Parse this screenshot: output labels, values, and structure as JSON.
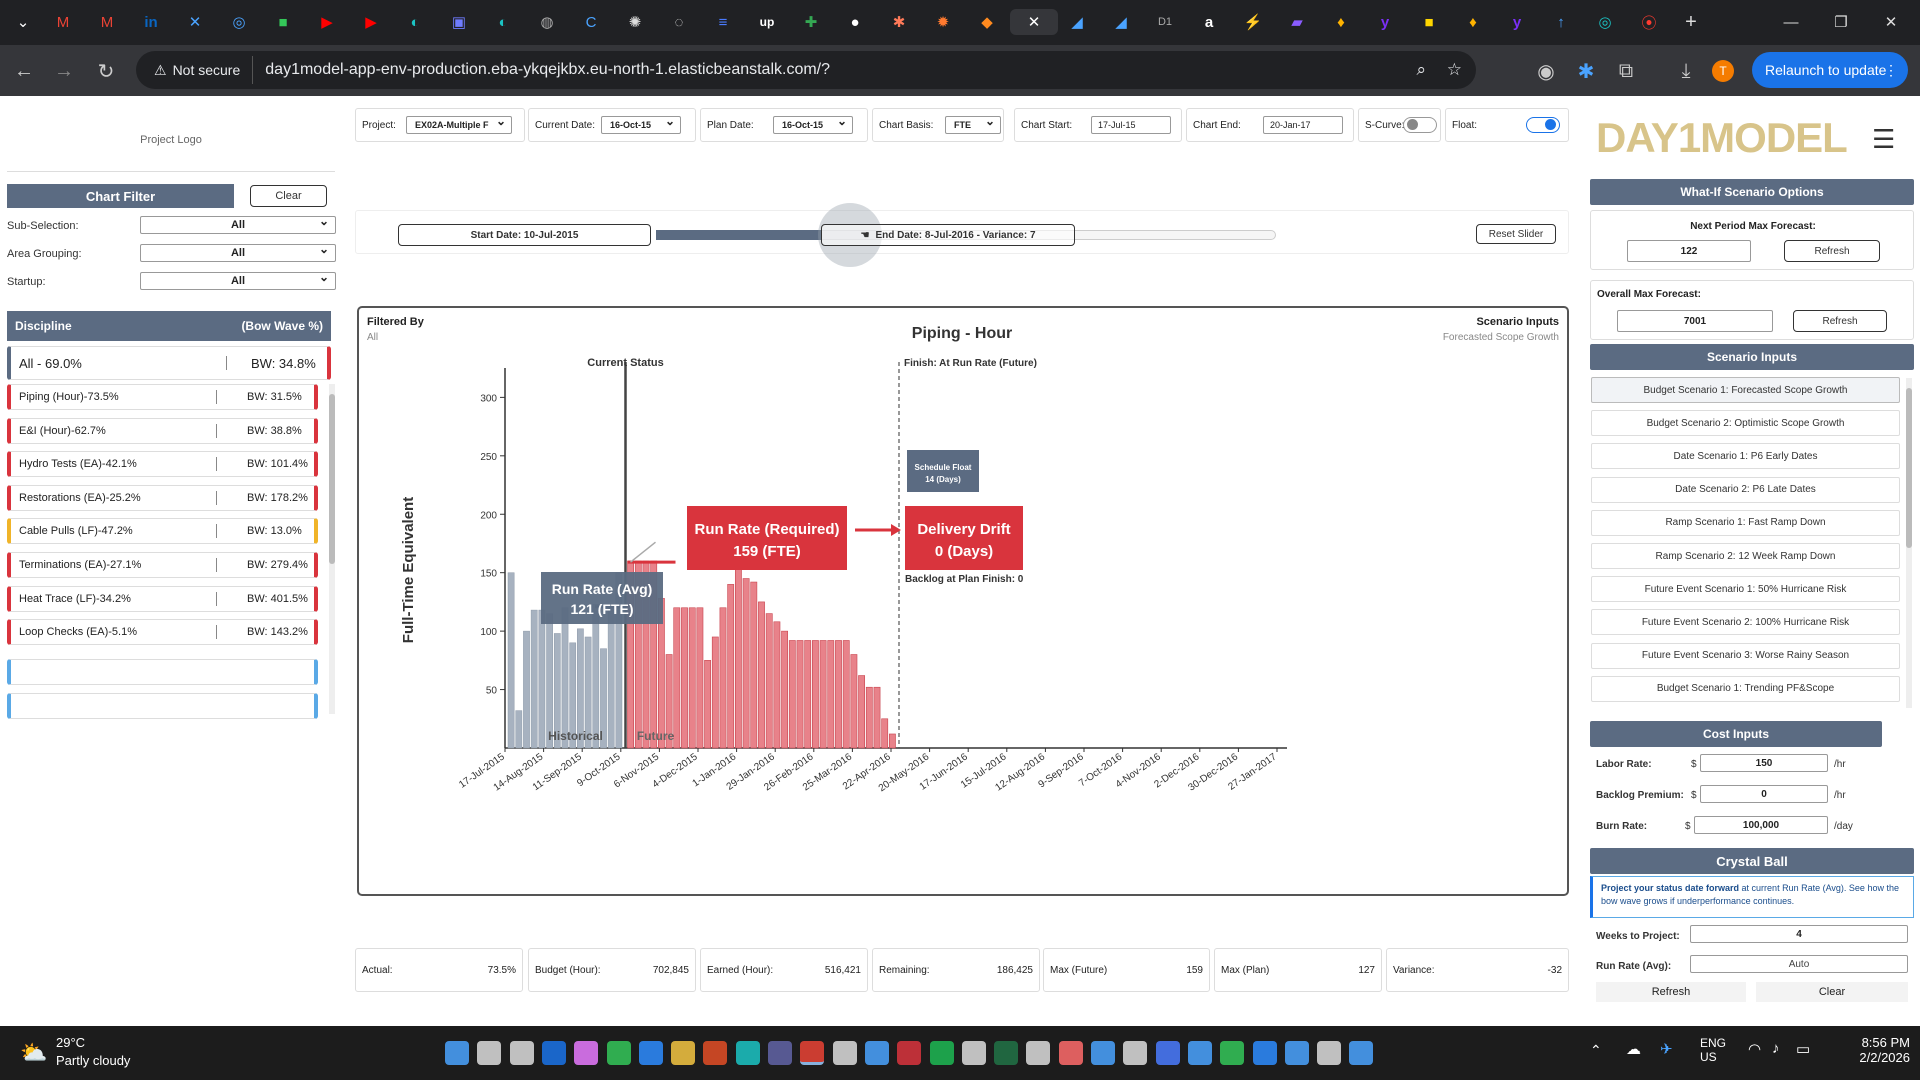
{
  "browser": {
    "active_tab_close": "✕",
    "new_tab": "+",
    "not_secure": "Not secure",
    "url": "day1model-app-env-production.eba-ykqejkbx.eu-north-1.elasticbeanstalk.com/?",
    "profile_initial": "T",
    "relaunch": "Relaunch to update"
  },
  "left": {
    "logo": "Project Logo",
    "chart_filter": "Chart Filter",
    "clear": "Clear",
    "filters": [
      {
        "label": "Sub-Selection:",
        "value": "All"
      },
      {
        "label": "Area Grouping:",
        "value": "All"
      },
      {
        "label": "Startup:",
        "value": "All"
      }
    ],
    "discipline_header": "Discipline",
    "bow_wave_header": "(Bow Wave %)",
    "all_row": {
      "label": "All -  69.0%",
      "bw": "BW:  34.8%"
    },
    "disciplines": [
      {
        "label": "Piping (Hour)-73.5%",
        "bw": "BW:  31.5%",
        "color": "#d9343d"
      },
      {
        "label": "E&I (Hour)-62.7%",
        "bw": "BW:  38.8%",
        "color": "#d9343d"
      },
      {
        "label": "Hydro Tests (EA)-42.1%",
        "bw": "BW:  101.4%",
        "color": "#d9343d"
      },
      {
        "label": "Restorations (EA)-25.2%",
        "bw": "BW:  178.2%",
        "color": "#d9343d"
      },
      {
        "label": "Cable Pulls (LF)-47.2%",
        "bw": "BW:  13.0%",
        "color": "#f0b429"
      },
      {
        "label": "Terminations (EA)-27.1%",
        "bw": "BW:  279.4%",
        "color": "#d9343d"
      },
      {
        "label": "Heat Trace (LF)-34.2%",
        "bw": "BW:  401.5%",
        "color": "#d9343d"
      },
      {
        "label": "Loop Checks (EA)-5.1%",
        "bw": "BW:  143.2%",
        "color": "#d9343d"
      }
    ]
  },
  "top": {
    "project_label": "Project:",
    "project_value": "EX02A-Multiple F",
    "current_date_label": "Current Date:",
    "current_date_value": "16-Oct-15",
    "plan_date_label": "Plan Date:",
    "plan_date_value": "16-Oct-15",
    "chart_basis_label": "Chart Basis:",
    "chart_basis_value": "FTE",
    "chart_start_label": "Chart Start:",
    "chart_start_value": "17-Jul-15",
    "chart_end_label": "Chart End:",
    "chart_end_value": "20-Jan-17",
    "scurve_label": "S-Curve:",
    "float_label": "Float:"
  },
  "slider": {
    "start": "Start Date: 10-Jul-2015",
    "end": "End Date: 8-Jul-2016 - Variance:  7",
    "reset": "Reset Slider"
  },
  "chart_panel": {
    "filtered_by": "Filtered By",
    "filtered_value": "All",
    "scenario_inputs": "Scenario Inputs",
    "scenario_value": "Forecasted Scope Growth",
    "current_status": "Current Status",
    "finish_label": "Finish: At Run Rate (Future)",
    "run_rate_avg": "Run Rate (Avg)",
    "run_rate_avg_val": "121 (FTE)",
    "run_rate_req": "Run Rate (Required)",
    "run_rate_req_val": "159 (FTE)",
    "delivery_drift": "Delivery Drift",
    "delivery_drift_val": "0 (Days)",
    "backlog": "Backlog at Plan Finish: 0",
    "schedule_float": "Schedule Float",
    "schedule_float_val": "14 (Days)",
    "historical": "Historical",
    "future": "Future"
  },
  "chart_data": {
    "type": "bar",
    "title": "Piping - Hour",
    "ylabel": "Full-Time Equivalent",
    "ylim": [
      0,
      320
    ],
    "yticks": [
      50,
      100,
      150,
      200,
      250,
      300
    ],
    "xticks": [
      "17-Jul-2015",
      "14-Aug-2015",
      "11-Sep-2015",
      "9-Oct-2015",
      "6-Nov-2015",
      "4-Dec-2015",
      "1-Jan-2016",
      "29-Jan-2016",
      "26-Feb-2016",
      "25-Mar-2016",
      "22-Apr-2016",
      "20-May-2016",
      "17-Jun-2016",
      "15-Jul-2016",
      "12-Aug-2016",
      "9-Sep-2016",
      "7-Oct-2016",
      "4-Nov-2016",
      "2-Dec-2016",
      "30-Dec-2016",
      "27-Jan-2017"
    ],
    "series": [
      {
        "name": "Historical",
        "color": "#a7b2c0",
        "values": [
          150,
          32,
          100,
          118,
          118,
          115,
          98,
          120,
          90,
          102,
          95,
          123,
          85,
          122,
          150
        ]
      },
      {
        "name": "Future",
        "color": "#e8828a",
        "values": [
          160,
          160,
          160,
          160,
          128,
          80,
          120,
          120,
          120,
          120,
          75,
          95,
          120,
          140,
          155,
          145,
          142,
          125,
          115,
          108,
          100,
          92,
          92,
          92,
          92,
          92,
          92,
          92,
          92,
          80,
          62,
          52,
          52,
          25,
          12
        ]
      }
    ],
    "run_rate_avg": 121,
    "run_rate_required": 159,
    "current_status_index": 15
  },
  "stats": [
    {
      "label": "Actual:",
      "value": "73.5%"
    },
    {
      "label": "Budget (Hour):",
      "value": "702,845"
    },
    {
      "label": "Earned (Hour):",
      "value": "516,421"
    },
    {
      "label": "Remaining:",
      "value": "186,425"
    },
    {
      "label": "Max (Future)",
      "value": "159"
    },
    {
      "label": "Max (Plan)",
      "value": "127"
    },
    {
      "label": "Variance:",
      "value": "-32"
    }
  ],
  "right": {
    "brand": "DAY1MODEL",
    "whatif": "What-If Scenario Options",
    "next_period": "Next Period Max Forecast:",
    "next_period_val": "122",
    "refresh": "Refresh",
    "overall_max": "Overall Max Forecast:",
    "overall_max_val": "7001",
    "scenario_inputs": "Scenario Inputs",
    "scenarios": [
      "Budget Scenario 1: Forecasted Scope Growth",
      "Budget Scenario 2: Optimistic Scope Growth",
      "Date Scenario 1: P6 Early Dates",
      "Date Scenario 2: P6 Late Dates",
      "Ramp Scenario 1: Fast Ramp Down",
      "Ramp Scenario 2: 12 Week Ramp Down",
      "Future Event Scenario 1: 50% Hurricane Risk",
      "Future Event Scenario 2: 100% Hurricane Risk",
      "Future Event Scenario 3: Worse Rainy Season",
      "Budget Scenario 1: Trending PF&Scope"
    ],
    "cost_inputs": "Cost Inputs",
    "labor_rate": "Labor Rate:",
    "labor_val": "150",
    "per_hr": "/hr",
    "backlog_premium": "Backlog Premium:",
    "backlog_val": "0",
    "burn_rate": "Burn Rate:",
    "burn_val": "100,000",
    "per_day": "/day",
    "dollar": "$",
    "crystal_ball": "Crystal Ball",
    "crystal_text_bold": "Project your status date forward",
    "crystal_text": " at current Run Rate (Avg). See how the bow wave grows if underperformance continues.",
    "weeks_label": "Weeks to Project:",
    "weeks_val": "4",
    "runrate_label": "Run Rate (Avg):",
    "runrate_val": "Auto",
    "cb_refresh": "Refresh",
    "cb_clear": "Clear"
  },
  "taskbar": {
    "temp": "29°C",
    "weather": "Partly cloudy",
    "lang1": "ENG",
    "lang2": "US",
    "time": "8:56 PM",
    "date": "2/2/2026"
  }
}
